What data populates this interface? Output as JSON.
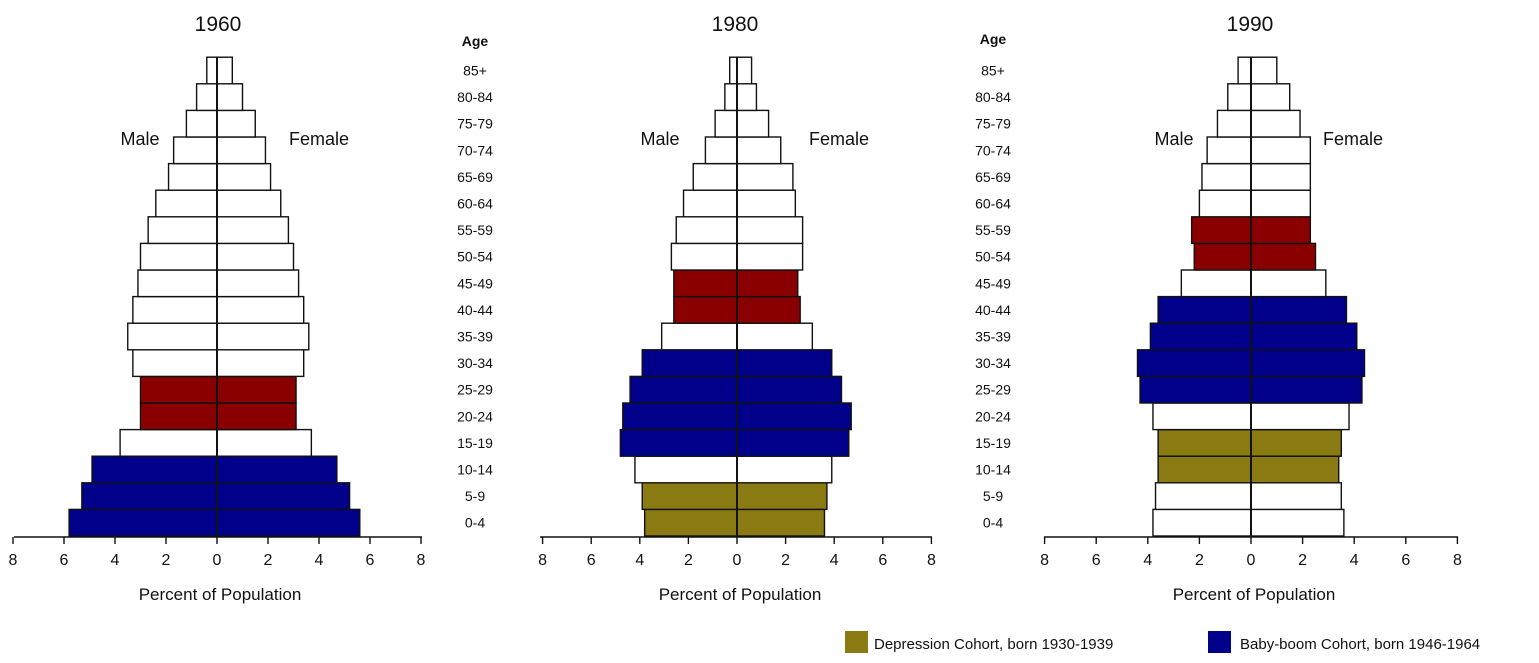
{
  "chart_data": [
    {
      "type": "bar",
      "orientation": "horizontal",
      "title": "1960",
      "xlabel": "Percent of Population",
      "male_label": "Male",
      "female_label": "Female",
      "xlim": [
        -8,
        8
      ],
      "xticks": [
        "8",
        "6",
        "4",
        "2",
        "0",
        "2",
        "4",
        "6",
        "8"
      ],
      "categories": [
        "0-4",
        "5-9",
        "10-14",
        "15-19",
        "20-24",
        "25-29",
        "30-34",
        "35-39",
        "40-44",
        "45-49",
        "50-54",
        "55-59",
        "60-64",
        "65-69",
        "70-74",
        "75-79",
        "80-84",
        "85+"
      ],
      "series": [
        {
          "name": "Male",
          "values": [
            5.8,
            5.3,
            4.9,
            3.8,
            3.0,
            3.0,
            3.3,
            3.5,
            3.3,
            3.1,
            3.0,
            2.7,
            2.4,
            1.9,
            1.7,
            1.2,
            0.8,
            0.4
          ]
        },
        {
          "name": "Female",
          "values": [
            5.6,
            5.2,
            4.7,
            3.7,
            3.1,
            3.1,
            3.4,
            3.6,
            3.4,
            3.2,
            3.0,
            2.8,
            2.5,
            2.1,
            1.9,
            1.5,
            1.0,
            0.6
          ]
        }
      ],
      "highlight": {
        "Depression Cohort": [
          "25-29",
          "20-24"
        ],
        "Baby-boom Cohort": [
          "0-4",
          "5-9",
          "10-14"
        ]
      }
    },
    {
      "type": "bar",
      "orientation": "horizontal",
      "title": "1980",
      "xlabel": "Percent of Population",
      "male_label": "Male",
      "female_label": "Female",
      "xlim": [
        -8,
        8
      ],
      "xticks": [
        "8",
        "6",
        "4",
        "2",
        "0",
        "2",
        "4",
        "6",
        "8"
      ],
      "categories": [
        "0-4",
        "5-9",
        "10-14",
        "15-19",
        "20-24",
        "25-29",
        "30-34",
        "35-39",
        "40-44",
        "45-49",
        "50-54",
        "55-59",
        "60-64",
        "65-69",
        "70-74",
        "75-79",
        "80-84",
        "85+"
      ],
      "series": [
        {
          "name": "Male",
          "values": [
            3.8,
            3.9,
            4.2,
            4.8,
            4.7,
            4.4,
            3.9,
            3.1,
            2.6,
            2.6,
            2.7,
            2.5,
            2.2,
            1.8,
            1.3,
            0.9,
            0.5,
            0.3
          ]
        },
        {
          "name": "Female",
          "values": [
            3.6,
            3.7,
            3.9,
            4.6,
            4.7,
            4.3,
            3.9,
            3.1,
            2.6,
            2.5,
            2.7,
            2.7,
            2.4,
            2.3,
            1.8,
            1.3,
            0.8,
            0.6
          ]
        }
      ],
      "highlight": {
        "Depression Cohort": [
          "40-44",
          "45-49"
        ],
        "Baby-boom Cohort": [
          "15-19",
          "20-24",
          "25-29",
          "30-34"
        ]
      }
    },
    {
      "type": "bar",
      "orientation": "horizontal",
      "title": "1990",
      "xlabel": "Percent of Population",
      "male_label": "Male",
      "female_label": "Female",
      "xlim": [
        -8,
        8
      ],
      "xticks": [
        "8",
        "6",
        "4",
        "2",
        "0",
        "2",
        "4",
        "6",
        "8"
      ],
      "categories": [
        "0-4",
        "5-9",
        "10-14",
        "15-19",
        "20-24",
        "25-29",
        "30-34",
        "35-39",
        "40-44",
        "45-49",
        "50-54",
        "55-59",
        "60-64",
        "65-69",
        "70-74",
        "75-79",
        "80-84",
        "85+"
      ],
      "series": [
        {
          "name": "Male",
          "values": [
            3.8,
            3.7,
            3.6,
            3.6,
            3.8,
            4.3,
            4.4,
            3.9,
            3.6,
            2.7,
            2.2,
            2.3,
            2.0,
            1.9,
            1.7,
            1.3,
            0.9,
            0.5
          ]
        },
        {
          "name": "Female",
          "values": [
            3.6,
            3.5,
            3.4,
            3.5,
            3.8,
            4.3,
            4.4,
            4.1,
            3.7,
            2.9,
            2.5,
            2.3,
            2.3,
            2.3,
            2.3,
            1.9,
            1.5,
            1.0
          ]
        }
      ],
      "highlight": {
        "Depression Cohort": [
          "50-54",
          "55-59"
        ],
        "Baby-boom Cohort": [
          "25-29",
          "30-34",
          "35-39",
          "40-44"
        ]
      }
    }
  ],
  "age_axis_header": "Age",
  "legend": [
    {
      "label": "Depression Cohort, born 1930-1939",
      "color": "#8a7a12"
    },
    {
      "label": "Baby-boom Cohort, born 1946-1964",
      "color": "#00008b"
    }
  ],
  "colors": {
    "depression": "#8a0000",
    "boom": "#00008b",
    "youth_depression": "#8a7a12",
    "bar_fill": "#ffffff",
    "stroke": "#111111"
  }
}
